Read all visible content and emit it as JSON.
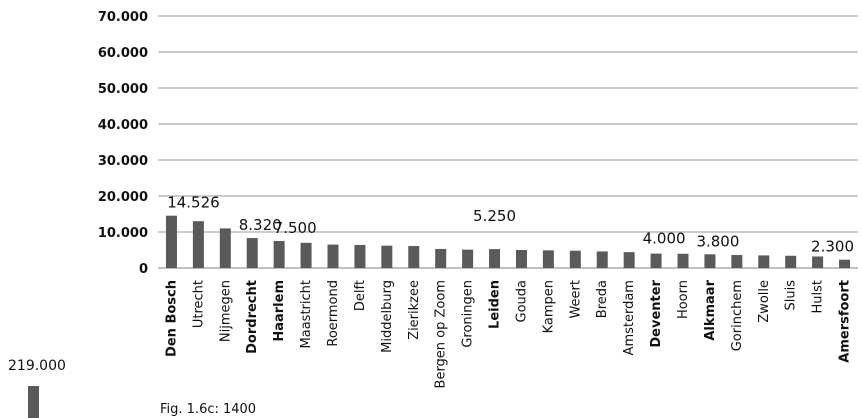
{
  "chart_data": {
    "type": "bar",
    "title": "",
    "xlabel": "",
    "ylabel": "",
    "ylim": [
      0,
      70000
    ],
    "grid": true,
    "ytick_labels": [
      "0",
      "10.000",
      "20.000",
      "30.000",
      "40.000",
      "50.000",
      "60.000",
      "70.000"
    ],
    "ytick_values": [
      0,
      10000,
      20000,
      30000,
      40000,
      50000,
      60000,
      70000
    ],
    "categories": [
      "Den Bosch",
      "Utrecht",
      "Nijmegen",
      "Dordrecht",
      "Haarlem",
      "Maastricht",
      "Roermond",
      "Delft",
      "Middelburg",
      "Zierikzee",
      "Bergen op Zoom",
      "Groningen",
      "Leiden",
      "Gouda",
      "Kampen",
      "Weert",
      "Breda",
      "Amsterdam",
      "Deventer",
      "Hoorn",
      "Alkmaar",
      "Gorinchem",
      "Zwolle",
      "Sluis",
      "Hulst",
      "Amersfoort"
    ],
    "bold_categories": [
      "Den Bosch",
      "Dordrecht",
      "Haarlem",
      "Leiden",
      "Deventer",
      "Alkmaar",
      "Amersfoort"
    ],
    "values": [
      14526,
      13000,
      11000,
      8320,
      7500,
      7000,
      6500,
      6400,
      6200,
      6100,
      5300,
      5100,
      5250,
      5000,
      4900,
      4800,
      4600,
      4400,
      4000,
      3950,
      3800,
      3600,
      3500,
      3400,
      3200,
      2300
    ],
    "data_labels": [
      {
        "category": "Den Bosch",
        "text": "14.526"
      },
      {
        "category": "Dordrecht",
        "text": "8.320"
      },
      {
        "category": "Haarlem",
        "text": "7.500"
      },
      {
        "category": "Leiden",
        "text": "5.250"
      },
      {
        "category": "Deventer",
        "text": "4.000"
      },
      {
        "category": "Alkmaar",
        "text": "3.800"
      },
      {
        "category": "Amersfoort",
        "text": "2.300"
      }
    ],
    "bar_color": "#5a5a5a",
    "outlier": {
      "label": "219.000",
      "value": 219000
    }
  },
  "caption": "Fig. 1.6c: 1400"
}
